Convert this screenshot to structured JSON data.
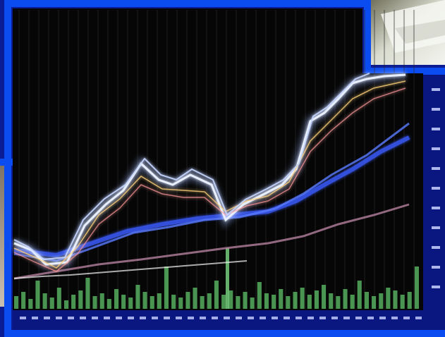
{
  "photo": {
    "subject": "stock-market-chart-monitor",
    "colors": {
      "frame_blue": "#0a4cf0",
      "screen_black": "#060606",
      "price_white": "#e8f0ff",
      "ma_blue": "#3a5cff",
      "ma_pink": "#c08aa8",
      "volume_green": "#5fc46a",
      "label_blue": "#2a44d8"
    }
  }
}
